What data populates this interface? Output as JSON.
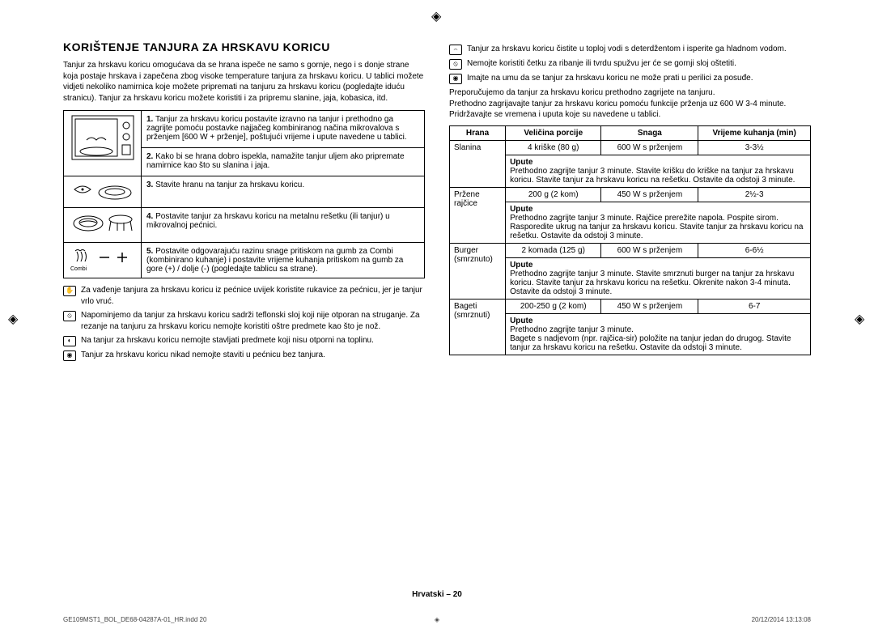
{
  "crop_mark": "◈",
  "heading": "KORIŠTENJE TANJURA ZA HRSKAVU KORICU",
  "intro": "Tanjur za hrskavu koricu omogućava da se hrana ispeče ne samo s gornje, nego i s donje strane koja postaje hrskava i zapečena zbog visoke temperature tanjura za hrskavu koricu. U tablici možete vidjeti nekoliko namirnica koje možete pripremati na tanjuru za hrskavu koricu (pogledajte iduću stranicu). Tanjur za hrskavu koricu možete koristiti i za pripremu slanine, jaja, kobasica, itd.",
  "steps": [
    "Tanjur za hrskavu koricu postavite izravno na tanjur i prethodno ga zagrijte pomoću postavke najjačeg kombiniranog načina mikrovalova s prženjem [600 W + prženje], poštujući vrijeme i upute navedene u tablici.",
    "Kako bi se hrana dobro ispekla, namažite tanjur uljem ako pripremate namirnice kao što su slanina i jaja.",
    "Stavite hranu na tanjur za hrskavu koricu.",
    "Postavite tanjur za hrskavu koricu na metalnu rešetku (ili tanjur) u mikrovalnoj pećnici.",
    "Postavite odgovarajuću razinu snage pritiskom na gumb za Combi (kombinirano kuhanje) i postavite vrijeme kuhanja pritiskom na gumb za gore (+) / dolje (-) (pogledajte tablicu sa strane)."
  ],
  "combi_label": "Combi",
  "left_notes": [
    "Za vađenje tanjura za hrskavu koricu iz pećnice uvijek koristite rukavice za pećnicu, jer je tanjur vrlo vruć.",
    "Napominjemo da tanjur za hrskavu koricu sadrži teflonski sloj koji nije otporan na struganje. Za rezanje na tanjuru za hrskavu koricu nemojte koristiti oštre predmete kao što je nož.",
    "Na tanjur za hrskavu koricu nemojte stavljati predmete koji nisu otporni na toplinu.",
    "Tanjur za hrskavu koricu nikad nemojte staviti u pećnicu bez tanjura."
  ],
  "right_notes": [
    "Tanjur za hrskavu koricu čistite u toploj vodi s deterdžentom i isperite ga hladnom vodom.",
    "Nemojte koristiti četku za ribanje ili tvrdu spužvu jer će se gornji sloj oštetiti.",
    "Imajte na umu da se tanjur za hrskavu koricu ne može prati u perilici za posuđe."
  ],
  "right_paras": [
    "Preporučujemo da tanjur za hrskavu koricu prethodno zagrijete na tanjuru.",
    "Prethodno zagrijavajte tanjur za hrskavu koricu pomoću funkcije prženja uz 600 W 3-4 minute.",
    "Pridržavajte se vremena i uputa koje su navedene u tablici."
  ],
  "table": {
    "headers": [
      "Hrana",
      "Veličina porcije",
      "Snaga",
      "Vrijeme kuhanja (min)"
    ],
    "upute_label": "Upute",
    "rows": [
      {
        "food": "Slanina",
        "portion": "4 kriške (80 g)",
        "power": "600 W s prženjem",
        "time": "3-3½",
        "instr": "Prethodno zagrijte tanjur 3 minute. Stavite krišku do kriške na tanjur za hrskavu koricu. Stavite tanjur za hrskavu koricu na rešetku. Ostavite da odstoji 3 minute."
      },
      {
        "food": "Pržene rajčice",
        "portion": "200 g (2 kom)",
        "power": "450 W s prženjem",
        "time": "2½-3",
        "instr": "Prethodno zagrijte tanjur 3 minute. Rajčice prerežite napola. Pospite sirom. Rasporedite ukrug na tanjur za hrskavu koricu. Stavite tanjur za hrskavu koricu na rešetku. Ostavite da odstoji 3 minute."
      },
      {
        "food": "Burger (smrznuto)",
        "portion": "2 komada (125 g)",
        "power": "600 W s prženjem",
        "time": "6-6½",
        "instr": "Prethodno zagrijte tanjur 3 minute. Stavite smrznuti burger na tanjur za hrskavu koricu. Stavite tanjur za hrskavu koricu na rešetku. Okrenite nakon 3-4 minuta. Ostavite da odstoji 3 minute."
      },
      {
        "food": "Bageti (smrznuti)",
        "portion": "200-250 g (2 kom)",
        "power": "450 W s prženjem",
        "time": "6-7",
        "instr": "Prethodno zagrijte tanjur 3 minute.\nBagete s nadjevom (npr. rajčica-sir) položite na tanjur jedan do drugog. Stavite tanjur za hrskavu koricu na rešetku. Ostavite da odstoji 3 minute."
      }
    ]
  },
  "footer": "Hrvatski – 20",
  "meta_left": "GE109MST1_BOL_DE68-04287A-01_HR.indd   20",
  "meta_right": "20/12/2014   13:13:08"
}
